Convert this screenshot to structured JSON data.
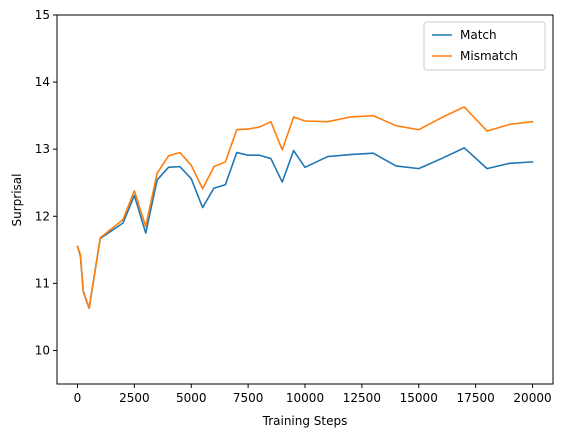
{
  "chart_data": {
    "type": "line",
    "title": "",
    "xlabel": "Training Steps",
    "ylabel": "Surprisal",
    "xlim": [
      -900,
      20900
    ],
    "ylim": [
      9.5,
      15
    ],
    "xticks": [
      0,
      2500,
      5000,
      7500,
      10000,
      12500,
      15000,
      17500,
      20000
    ],
    "xtick_labels": [
      "0",
      "2500",
      "5000",
      "7500",
      "10000",
      "12500",
      "15000",
      "17500",
      "20000"
    ],
    "yticks": [
      10,
      11,
      12,
      13,
      14,
      15
    ],
    "ytick_labels": [
      "10",
      "11",
      "12",
      "13",
      "14",
      "15"
    ],
    "grid": false,
    "legend_position": "top-right",
    "x": [
      0,
      128,
      256,
      512,
      1000,
      2000,
      2500,
      3000,
      3500,
      4000,
      4500,
      5000,
      5500,
      6000,
      6500,
      7000,
      7500,
      8000,
      8500,
      9000,
      9500,
      10000,
      11000,
      12000,
      13000,
      14000,
      15000,
      16000,
      17000,
      18000,
      19000,
      20000
    ],
    "series": [
      {
        "name": "Match",
        "color": "#1f77b4",
        "values": [
          11.55,
          11.41,
          10.88,
          10.63,
          11.67,
          11.9,
          12.31,
          11.75,
          12.54,
          12.73,
          12.74,
          12.56,
          12.13,
          12.42,
          12.47,
          12.95,
          12.91,
          12.91,
          12.86,
          12.51,
          12.98,
          12.73,
          12.89,
          12.92,
          12.94,
          12.75,
          12.71,
          12.86,
          13.02,
          12.71,
          12.79,
          12.81
        ]
      },
      {
        "name": "Mismatch",
        "color": "#ff7f0e",
        "values": [
          11.55,
          11.43,
          10.87,
          10.63,
          11.68,
          11.95,
          12.38,
          11.85,
          12.64,
          12.9,
          12.95,
          12.76,
          12.41,
          12.74,
          12.81,
          13.29,
          13.3,
          13.33,
          13.41,
          12.99,
          13.48,
          13.42,
          13.41,
          13.48,
          13.5,
          13.35,
          13.29,
          13.47,
          13.63,
          13.27,
          13.37,
          13.41
        ]
      }
    ]
  }
}
